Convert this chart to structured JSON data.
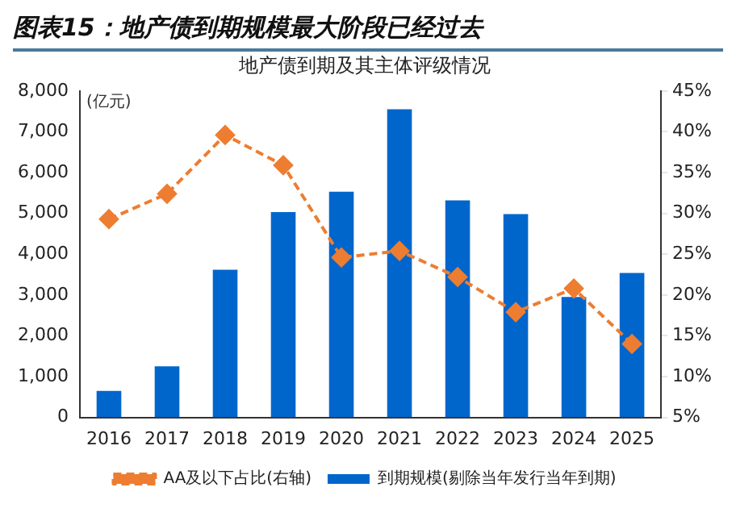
{
  "chart_data": {
    "type": "bar",
    "title": "图表15：地产债到期规模最大阶段已经过去",
    "subtitle": "地产债到期及其主体评级情况",
    "ylabel": "(亿元)",
    "categories": [
      "2016",
      "2017",
      "2018",
      "2019",
      "2020",
      "2021",
      "2022",
      "2023",
      "2024",
      "2025"
    ],
    "series": [
      {
        "name": "到期规模(剔除当年发行当年到期)",
        "color": "#0066cc",
        "values": [
          650,
          1250,
          3620,
          5030,
          5530,
          7550,
          5320,
          4980,
          2950,
          3540
        ]
      },
      {
        "name": "AA及以下占比(右轴)",
        "type": "line",
        "axis": "y2",
        "color": "#ed7d31",
        "line_style": "dashed",
        "marker": "diamond",
        "values": [
          29.3,
          32.4,
          39.6,
          35.9,
          24.6,
          25.4,
          22.2,
          17.9,
          20.8,
          14.0
        ]
      }
    ],
    "ylim": [
      0,
      8000
    ],
    "yticks": [
      {
        "value": 0,
        "label": "0"
      },
      {
        "value": 1000,
        "label": "1,000"
      },
      {
        "value": 2000,
        "label": "2,000"
      },
      {
        "value": 3000,
        "label": "3,000"
      },
      {
        "value": 4000,
        "label": "4,000"
      },
      {
        "value": 5000,
        "label": "5,000"
      },
      {
        "value": 6000,
        "label": "6,000"
      },
      {
        "value": 7000,
        "label": "7,000"
      },
      {
        "value": 8000,
        "label": "8,000"
      }
    ],
    "y2lim": [
      5,
      45
    ],
    "y2ticks": [
      {
        "value": 5,
        "label": "5%"
      },
      {
        "value": 10,
        "label": "10%"
      },
      {
        "value": 15,
        "label": "15%"
      },
      {
        "value": 20,
        "label": "20%"
      },
      {
        "value": 25,
        "label": "25%"
      },
      {
        "value": 30,
        "label": "30%"
      },
      {
        "value": 35,
        "label": "35%"
      },
      {
        "value": 40,
        "label": "40%"
      },
      {
        "value": 45,
        "label": "45%"
      }
    ],
    "grid": false,
    "legend": "bottom"
  }
}
